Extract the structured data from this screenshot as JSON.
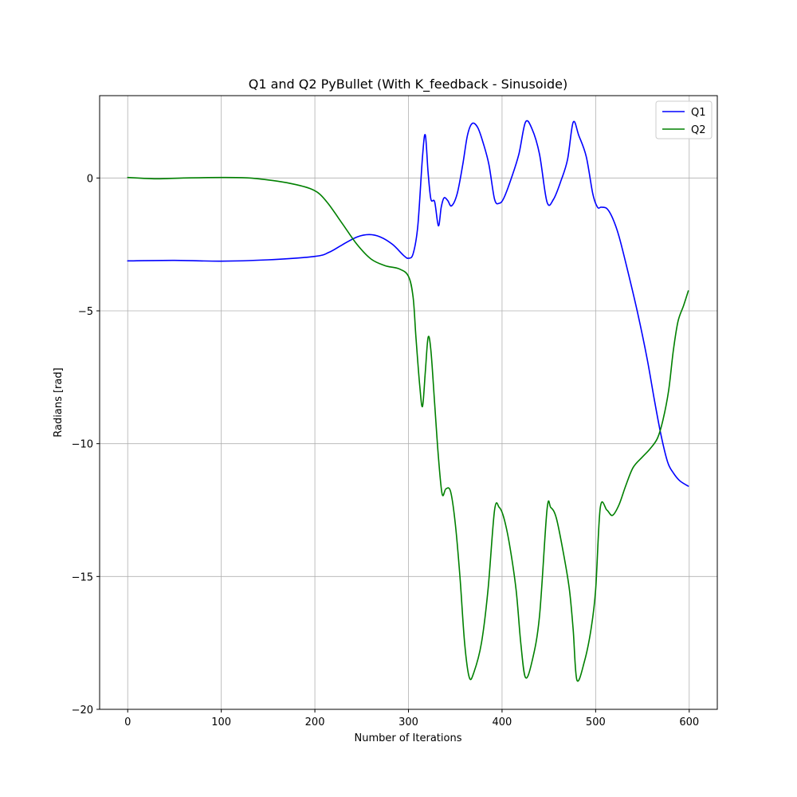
{
  "chart_data": {
    "type": "line",
    "title": "Q1 and Q2 PyBullet (With K_feedback - Sinusoide)",
    "xlabel": "Number of Iterations",
    "ylabel": "Radians [rad]",
    "xlim": [
      -30,
      630
    ],
    "ylim": [
      -20,
      3.1
    ],
    "xticks": [
      0,
      100,
      200,
      300,
      400,
      500,
      600
    ],
    "yticks": [
      -20,
      -15,
      -10,
      -5,
      0
    ],
    "ytick_labels": [
      "−20",
      "−15",
      "−10",
      "−5",
      "0"
    ],
    "grid": true,
    "legend_position": "top-right",
    "series": [
      {
        "name": "Q1",
        "color": "#0000ff",
        "x": [
          0,
          50,
          100,
          150,
          200,
          215,
          230,
          245,
          258,
          270,
          283,
          295,
          300,
          305,
          310,
          315,
          318,
          321,
          324,
          328,
          332,
          335,
          338,
          342,
          346,
          352,
          358,
          363,
          368,
          374,
          380,
          386,
          392,
          397,
          402,
          410,
          418,
          425,
          432,
          440,
          448,
          455,
          463,
          470,
          476,
          482,
          490,
          497,
          502,
          506,
          512,
          518,
          525,
          535,
          545,
          555,
          563,
          570,
          577,
          583,
          590,
          599
        ],
        "y": [
          -3.12,
          -3.1,
          -3.13,
          -3.08,
          -2.95,
          -2.8,
          -2.5,
          -2.22,
          -2.13,
          -2.22,
          -2.5,
          -2.92,
          -3.02,
          -2.85,
          -1.8,
          0.8,
          1.62,
          0.2,
          -0.8,
          -0.9,
          -1.8,
          -1.1,
          -0.75,
          -0.85,
          -1.05,
          -0.6,
          0.5,
          1.6,
          2.05,
          1.9,
          1.3,
          0.5,
          -0.8,
          -0.95,
          -0.75,
          0.0,
          0.9,
          2.1,
          1.85,
          0.9,
          -0.9,
          -0.8,
          -0.1,
          0.7,
          2.1,
          1.6,
          0.8,
          -0.6,
          -1.1,
          -1.1,
          -1.15,
          -1.5,
          -2.2,
          -3.6,
          -5.1,
          -6.8,
          -8.4,
          -9.7,
          -10.7,
          -11.1,
          -11.4,
          -11.6
        ]
      },
      {
        "name": "Q2",
        "color": "#008000",
        "x": [
          0,
          30,
          60,
          100,
          130,
          160,
          180,
          195,
          205,
          215,
          230,
          245,
          260,
          275,
          290,
          300,
          305,
          308,
          312,
          315,
          318,
          321,
          324,
          328,
          332,
          336,
          340,
          345,
          350,
          355,
          360,
          365,
          370,
          378,
          385,
          392,
          397,
          402,
          408,
          415,
          420,
          425,
          432,
          440,
          448,
          452,
          458,
          466,
          472,
          476,
          480,
          488,
          495,
          500,
          505,
          512,
          518,
          525,
          532,
          540,
          550,
          558,
          566,
          572,
          578,
          583,
          588,
          594,
          599
        ],
        "y": [
          0.02,
          -0.03,
          0.0,
          0.02,
          0.0,
          -0.12,
          -0.25,
          -0.4,
          -0.6,
          -1.0,
          -1.75,
          -2.5,
          -3.05,
          -3.3,
          -3.42,
          -3.7,
          -4.5,
          -6.0,
          -7.8,
          -8.6,
          -7.3,
          -6.0,
          -6.5,
          -8.5,
          -10.5,
          -11.9,
          -11.7,
          -11.8,
          -13.0,
          -15.0,
          -17.5,
          -18.8,
          -18.6,
          -17.5,
          -15.5,
          -12.5,
          -12.4,
          -12.8,
          -13.8,
          -15.5,
          -17.5,
          -18.8,
          -18.2,
          -16.5,
          -12.5,
          -12.4,
          -12.8,
          -14.2,
          -15.5,
          -17.0,
          -18.9,
          -18.2,
          -17.0,
          -15.5,
          -12.4,
          -12.5,
          -12.7,
          -12.3,
          -11.6,
          -10.9,
          -10.5,
          -10.2,
          -9.8,
          -9.1,
          -8.0,
          -6.5,
          -5.4,
          -4.8,
          -4.25
        ]
      }
    ]
  }
}
